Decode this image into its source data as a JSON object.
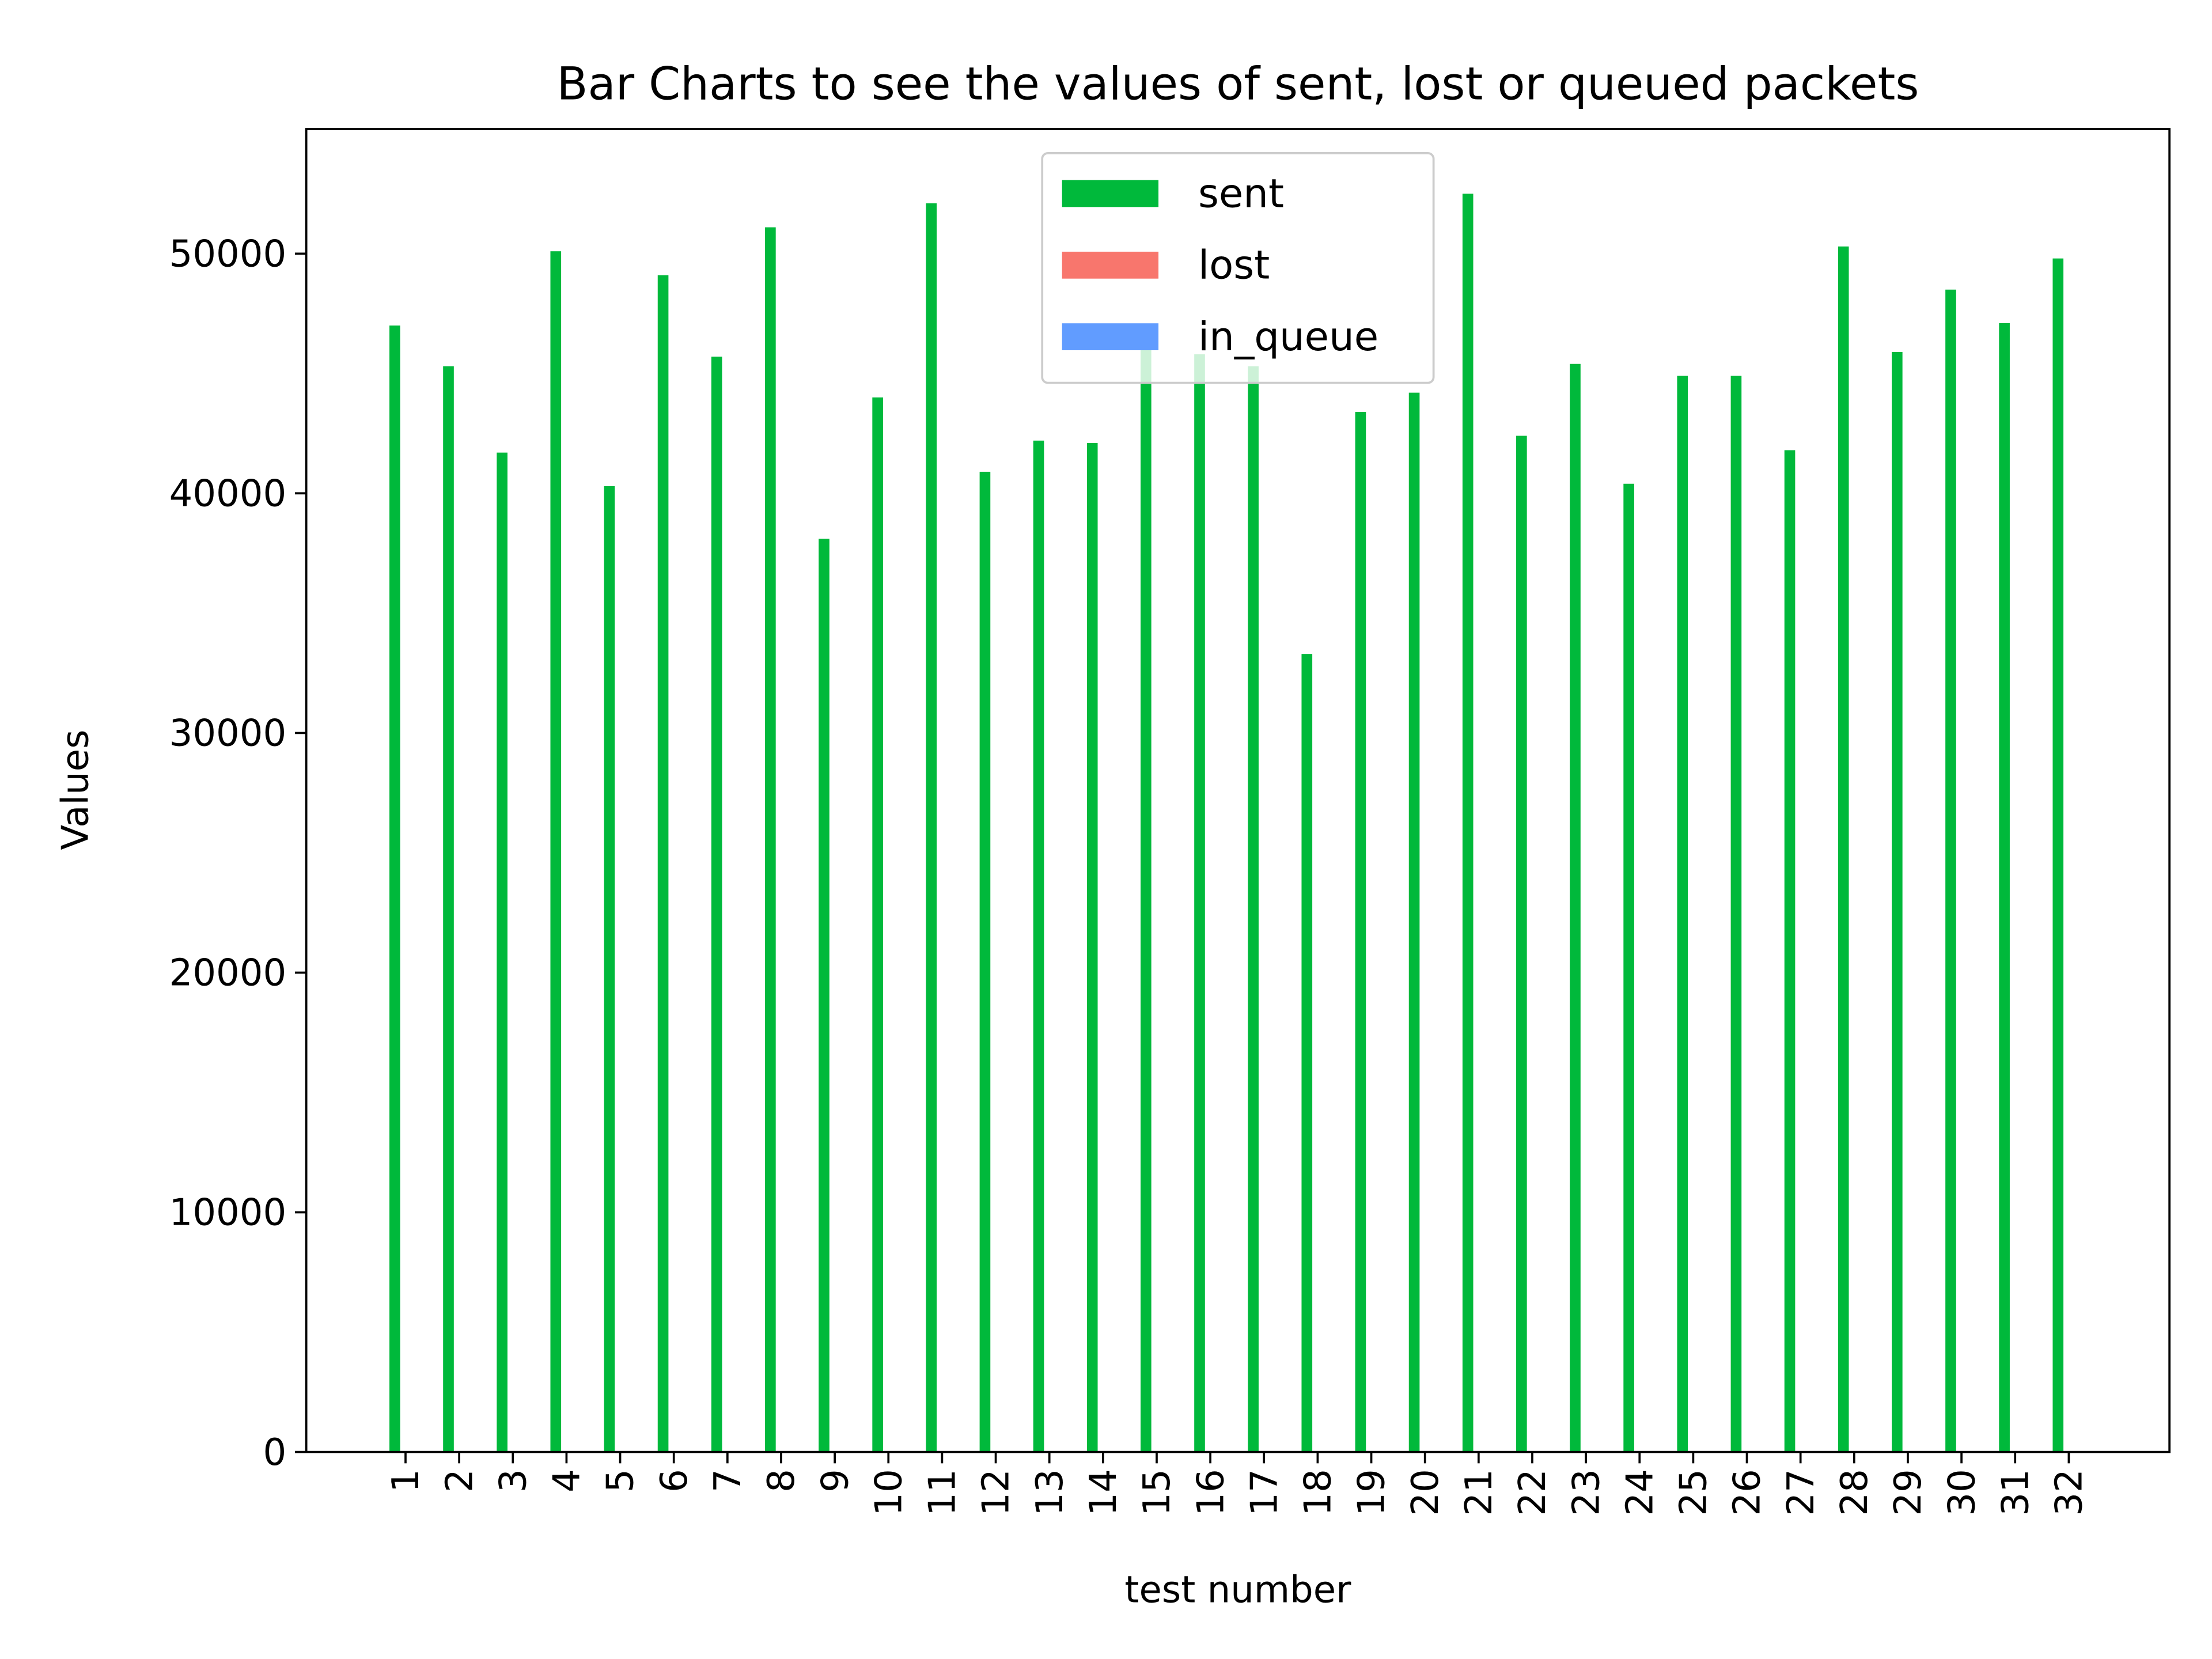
{
  "chart_data": {
    "type": "bar",
    "title": "Bar Charts to see the values of sent, lost or queued packets",
    "xlabel": "test number",
    "ylabel": "Values",
    "categories": [
      "1",
      "2",
      "3",
      "4",
      "5",
      "6",
      "7",
      "8",
      "9",
      "10",
      "11",
      "12",
      "13",
      "14",
      "15",
      "16",
      "17",
      "18",
      "19",
      "20",
      "21",
      "22",
      "23",
      "24",
      "25",
      "26",
      "27",
      "28",
      "29",
      "30",
      "31",
      "32"
    ],
    "series": [
      {
        "name": "sent",
        "color": "#00b93b",
        "values": [
          47000,
          45300,
          41700,
          50100,
          40300,
          49100,
          45700,
          51100,
          38100,
          44000,
          52100,
          40900,
          42200,
          42100,
          46000,
          45800,
          45300,
          33300,
          43400,
          44200,
          52500,
          42400,
          45400,
          40400,
          44900,
          44900,
          41800,
          50300,
          45900,
          48500,
          47100,
          49800
        ]
      },
      {
        "name": "lost",
        "color": "#f8766d",
        "values": [
          0,
          0,
          0,
          0,
          0,
          0,
          0,
          0,
          0,
          0,
          0,
          0,
          0,
          0,
          0,
          0,
          0,
          0,
          0,
          0,
          0,
          0,
          0,
          0,
          0,
          0,
          0,
          0,
          0,
          0,
          0,
          0
        ]
      },
      {
        "name": "in_queue",
        "color": "#619cff",
        "values": [
          0,
          0,
          0,
          0,
          0,
          0,
          0,
          0,
          0,
          0,
          0,
          0,
          0,
          0,
          0,
          0,
          0,
          0,
          0,
          0,
          0,
          0,
          0,
          0,
          0,
          0,
          0,
          0,
          0,
          0,
          0,
          0
        ]
      }
    ],
    "ylim": [
      0,
      55200
    ],
    "yticks": [
      0,
      10000,
      20000,
      30000,
      40000,
      50000
    ],
    "legend": "upper center"
  }
}
